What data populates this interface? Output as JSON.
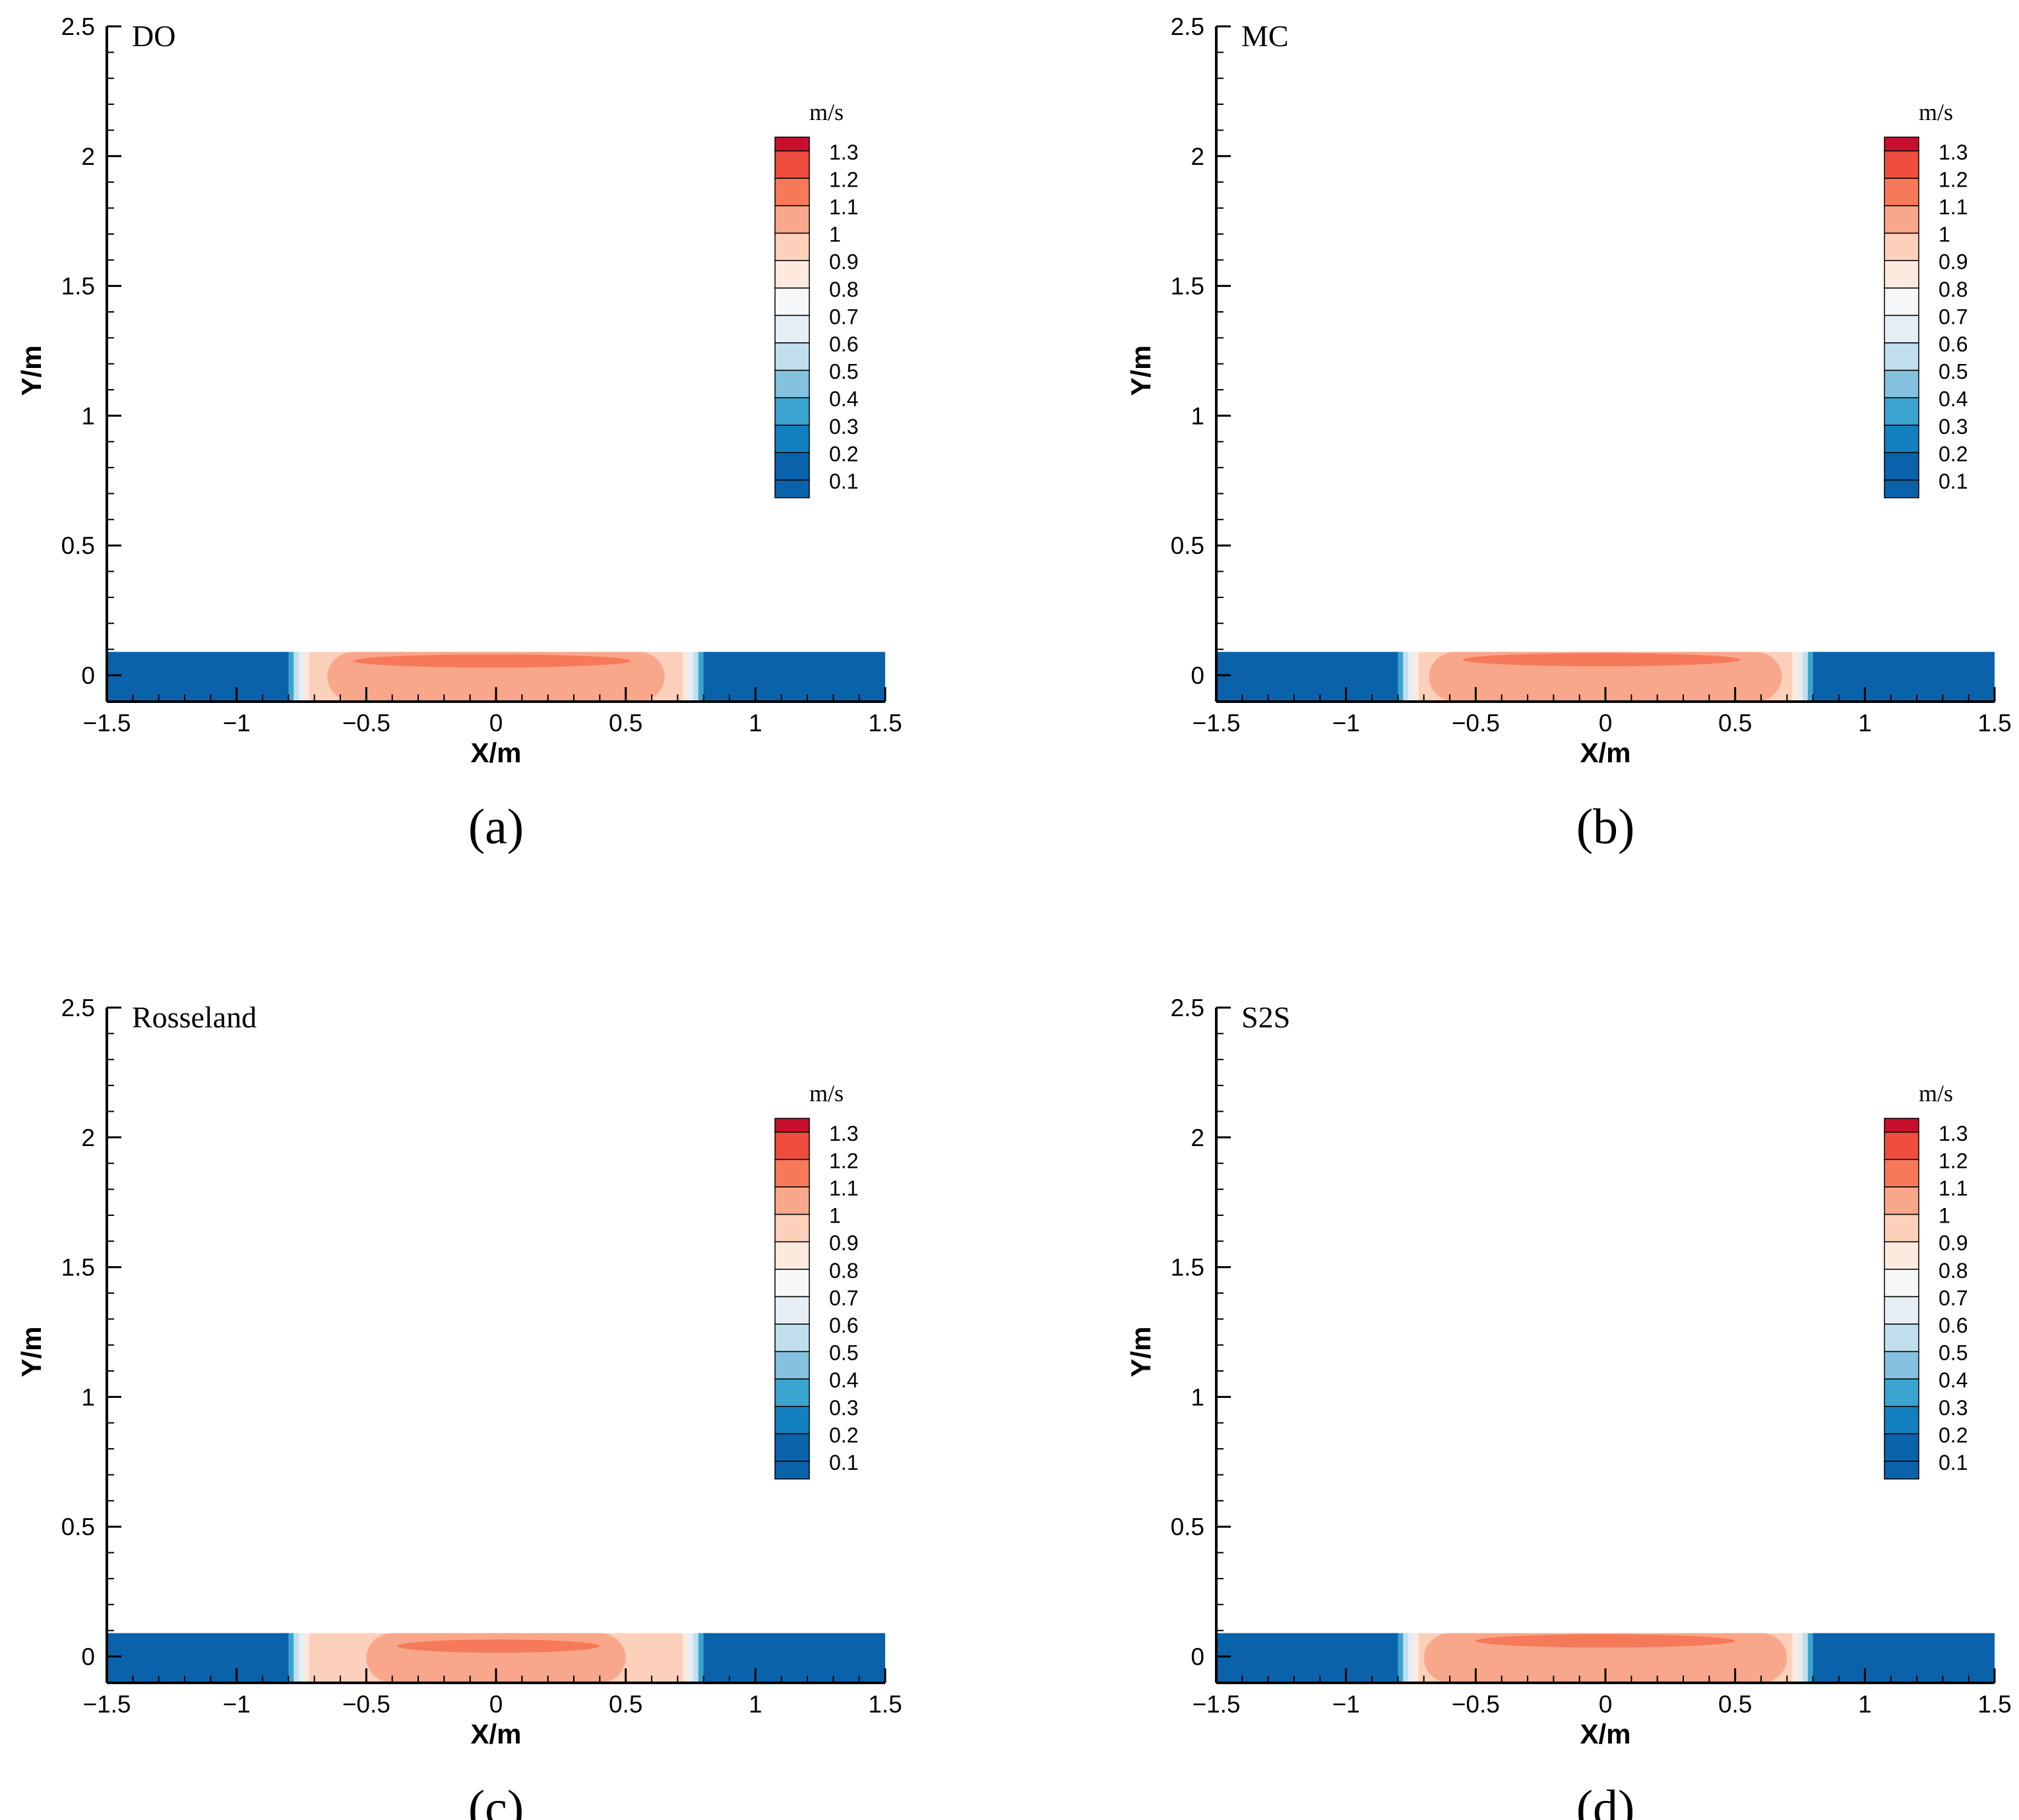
{
  "figure": {
    "panel_count": 4
  },
  "chart_data": [
    {
      "type": "heatmap",
      "panel_label": "(a)",
      "title": "DO",
      "xlabel": "X/m",
      "ylabel": "Y/m",
      "xlim": [
        -1.5,
        1.5
      ],
      "ylim": [
        -0.1,
        2.5
      ],
      "x_ticks": [
        "−1.5",
        "−1",
        "−0.5",
        "0",
        "0.5",
        "1",
        "1.5"
      ],
      "y_ticks": [
        "0",
        "0.5",
        "1",
        "1.5",
        "2",
        "2.5"
      ],
      "colorbar": {
        "unit": "m/s",
        "levels": [
          "1.3",
          "1.2",
          "1.1",
          "1",
          "0.9",
          "0.8",
          "0.7",
          "0.6",
          "0.5",
          "0.4",
          "0.3",
          "0.2",
          "0.1"
        ]
      },
      "field": {
        "domain_x": [
          -1.5,
          1.5
        ],
        "domain_y": [
          -0.1,
          0.09
        ],
        "low_speed_regions": [
          [
            -1.5,
            -0.8
          ],
          [
            0.8,
            1.5
          ]
        ],
        "low_speed_value": 0.1,
        "jet_core": {
          "x": [
            -0.65,
            0.65
          ],
          "value": 1.0
        },
        "peak": {
          "x": [
            -0.55,
            0.52
          ],
          "y_center": 0.055,
          "value": 1.1
        }
      }
    },
    {
      "type": "heatmap",
      "panel_label": "(b)",
      "title": "MC",
      "xlabel": "X/m",
      "ylabel": "Y/m",
      "xlim": [
        -1.5,
        1.5
      ],
      "ylim": [
        -0.1,
        2.5
      ],
      "x_ticks": [
        "−1.5",
        "−1",
        "−0.5",
        "0",
        "0.5",
        "1",
        "1.5"
      ],
      "y_ticks": [
        "0",
        "0.5",
        "1",
        "1.5",
        "2",
        "2.5"
      ],
      "colorbar": {
        "unit": "m/s",
        "levels": [
          "1.3",
          "1.2",
          "1.1",
          "1",
          "0.9",
          "0.8",
          "0.7",
          "0.6",
          "0.5",
          "0.4",
          "0.3",
          "0.2",
          "0.1"
        ]
      },
      "field": {
        "domain_x": [
          -1.5,
          1.5
        ],
        "domain_y": [
          -0.1,
          0.09
        ],
        "low_speed_regions": [
          [
            -1.5,
            -0.8
          ],
          [
            0.8,
            1.5
          ]
        ],
        "low_speed_value": 0.1,
        "jet_core": {
          "x": [
            -0.68,
            0.68
          ],
          "value": 1.0
        },
        "peak": {
          "x": [
            -0.55,
            0.52
          ],
          "y_center": 0.06,
          "value": 1.1
        }
      }
    },
    {
      "type": "heatmap",
      "panel_label": "(c)",
      "title": "Rosseland",
      "xlabel": "X/m",
      "ylabel": "Y/m",
      "xlim": [
        -1.5,
        1.5
      ],
      "ylim": [
        -0.1,
        2.5
      ],
      "x_ticks": [
        "−1.5",
        "−1",
        "−0.5",
        "0",
        "0.5",
        "1",
        "1.5"
      ],
      "y_ticks": [
        "0",
        "0.5",
        "1",
        "1.5",
        "2",
        "2.5"
      ],
      "colorbar": {
        "unit": "m/s",
        "levels": [
          "1.3",
          "1.2",
          "1.1",
          "1",
          "0.9",
          "0.8",
          "0.7",
          "0.6",
          "0.5",
          "0.4",
          "0.3",
          "0.2",
          "0.1"
        ]
      },
      "field": {
        "domain_x": [
          -1.5,
          1.5
        ],
        "domain_y": [
          -0.1,
          0.09
        ],
        "low_speed_regions": [
          [
            -1.5,
            -0.8
          ],
          [
            0.8,
            1.5
          ]
        ],
        "low_speed_value": 0.1,
        "jet_core": {
          "x": [
            -0.5,
            0.5
          ],
          "value": 1.0
        },
        "peak": {
          "x": [
            -0.38,
            0.4
          ],
          "y_center": 0.04,
          "value": 1.1
        }
      }
    },
    {
      "type": "heatmap",
      "panel_label": "(d)",
      "title": "S2S",
      "xlabel": "X/m",
      "ylabel": "Y/m",
      "xlim": [
        -1.5,
        1.5
      ],
      "ylim": [
        -0.1,
        2.5
      ],
      "x_ticks": [
        "−1.5",
        "−1",
        "−0.5",
        "0",
        "0.5",
        "1",
        "1.5"
      ],
      "y_ticks": [
        "0",
        "0.5",
        "1",
        "1.5",
        "2",
        "2.5"
      ],
      "colorbar": {
        "unit": "m/s",
        "levels": [
          "1.3",
          "1.2",
          "1.1",
          "1",
          "0.9",
          "0.8",
          "0.7",
          "0.6",
          "0.5",
          "0.4",
          "0.3",
          "0.2",
          "0.1"
        ]
      },
      "field": {
        "domain_x": [
          -1.5,
          1.5
        ],
        "domain_y": [
          -0.1,
          0.09
        ],
        "low_speed_regions": [
          [
            -1.5,
            -0.8
          ],
          [
            0.8,
            1.5
          ]
        ],
        "low_speed_value": 0.1,
        "jet_core": {
          "x": [
            -0.7,
            0.7
          ],
          "value": 1.0
        },
        "peak": {
          "x": [
            -0.5,
            0.5
          ],
          "y_center": 0.06,
          "value": 1.1
        }
      }
    }
  ],
  "palette": {
    "levels_colors": [
      "#C8102E",
      "#EE4D3E",
      "#F6795A",
      "#F9A78B",
      "#FCD0BA",
      "#FDE9DE",
      "#F6F7F8",
      "#E4EEF4",
      "#C1DEEC",
      "#83C1DE",
      "#3BA3CF",
      "#1280BF",
      "#0A63AA"
    ],
    "axis_color": "#000000",
    "background": "#ffffff"
  }
}
